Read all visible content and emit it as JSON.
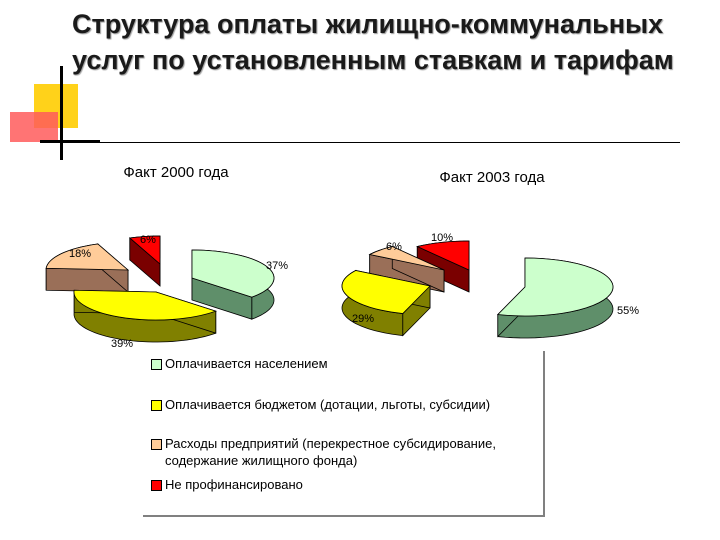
{
  "title": "Структура оплаты жилищно-коммунальных услуг по установленным ставкам и тарифам",
  "chart_data": [
    {
      "type": "pie",
      "title": "Факт 2000 года",
      "labels": [
        "Оплачивается населением",
        "Оплачивается бюджетом (дотации, льготы, субсидии)",
        "Расходы предприятий (перекрестное субсидирование, содержание жилищного фонда)",
        "Не профинансировано"
      ],
      "values": [
        37,
        39,
        18,
        6
      ],
      "value_labels": [
        "37%",
        "39%",
        "18%",
        "6%"
      ],
      "colors": [
        "#ccffcc",
        "#ffff00",
        "#ffcc99",
        "#ff0000"
      ]
    },
    {
      "type": "pie",
      "title": "Факт 2003 года",
      "labels": [
        "Оплачивается населением",
        "Оплачивается бюджетом (дотации, льготы, субсидии)",
        "Расходы предприятий (перекрестное субсидирование, содержание жилищного фонда)",
        "Не профинансировано"
      ],
      "values": [
        55,
        29,
        6,
        10
      ],
      "value_labels": [
        "55%",
        "29%",
        "6%",
        "10%"
      ],
      "colors": [
        "#ccffcc",
        "#ffff00",
        "#ffcc99",
        "#ff0000"
      ]
    }
  ],
  "legend": [
    {
      "label": "Оплачивается населением",
      "color": "#ccffcc"
    },
    {
      "label": "Оплачивается бюджетом (дотации, льготы, субсидии)",
      "color": "#ffff00"
    },
    {
      "label": "Расходы предприятий (перекрестное субсидирование, содержание жилищного фонда)",
      "color": "#ffcc99"
    },
    {
      "label": "Не профинансировано",
      "color": "#ff0000"
    }
  ]
}
